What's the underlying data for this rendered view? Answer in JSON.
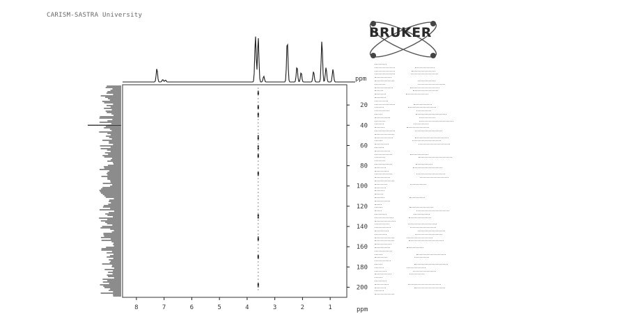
{
  "header": {
    "institution": "CARISM-SASTRA University"
  },
  "logo": {
    "text": "BRUKER",
    "icon": "bruker-atom-logo"
  },
  "colors": {
    "ink": "#1a1a1a",
    "frame": "#333333",
    "faint": "#8a8a8a"
  },
  "chart_data": {
    "type": "hsqc-2d-nmr",
    "f2_axis": {
      "unit": "ppm",
      "range": [
        8.5,
        0.4
      ],
      "ticks": [
        8,
        7,
        6,
        5,
        4,
        3,
        2,
        1
      ],
      "tick_labels": [
        "8",
        "7",
        "6",
        "5",
        "4",
        "3",
        "2",
        "1"
      ]
    },
    "f1_axis": {
      "unit": "ppm",
      "range": [
        210,
        0
      ],
      "ticks": [
        20,
        40,
        60,
        80,
        100,
        120,
        140,
        160,
        180,
        200
      ],
      "tick_labels": [
        "20",
        "40",
        "60",
        "80",
        "100",
        "120",
        "140",
        "160",
        "180",
        "200"
      ]
    },
    "f2_projection_peaks": [
      {
        "ppm": 7.26,
        "height": 0.28
      },
      {
        "ppm": 7.05,
        "height": 0.05
      },
      {
        "ppm": 6.95,
        "height": 0.04
      },
      {
        "ppm": 3.7,
        "height": 0.95
      },
      {
        "ppm": 3.6,
        "height": 0.92
      },
      {
        "ppm": 3.4,
        "height": 0.12
      },
      {
        "ppm": 2.55,
        "height": 0.86
      },
      {
        "ppm": 2.2,
        "height": 0.32
      },
      {
        "ppm": 2.05,
        "height": 0.2
      },
      {
        "ppm": 1.6,
        "height": 0.22
      },
      {
        "ppm": 1.3,
        "height": 0.85
      },
      {
        "ppm": 1.15,
        "height": 0.3
      },
      {
        "ppm": 0.9,
        "height": 0.26
      }
    ],
    "f1_projection_peak": {
      "ppm": 40
    },
    "cross_peaks": [
      {
        "f2": 3.6,
        "f1": 8
      },
      {
        "f2": 3.6,
        "f1": 22
      },
      {
        "f2": 3.6,
        "f1": 30
      },
      {
        "f2": 3.6,
        "f1": 52
      },
      {
        "f2": 3.6,
        "f1": 62
      },
      {
        "f2": 3.6,
        "f1": 70
      },
      {
        "f2": 3.6,
        "f1": 88
      },
      {
        "f2": 3.6,
        "f1": 130
      },
      {
        "f2": 3.6,
        "f1": 152
      },
      {
        "f2": 3.6,
        "f1": 170
      },
      {
        "f2": 3.6,
        "f1": 198
      }
    ]
  }
}
